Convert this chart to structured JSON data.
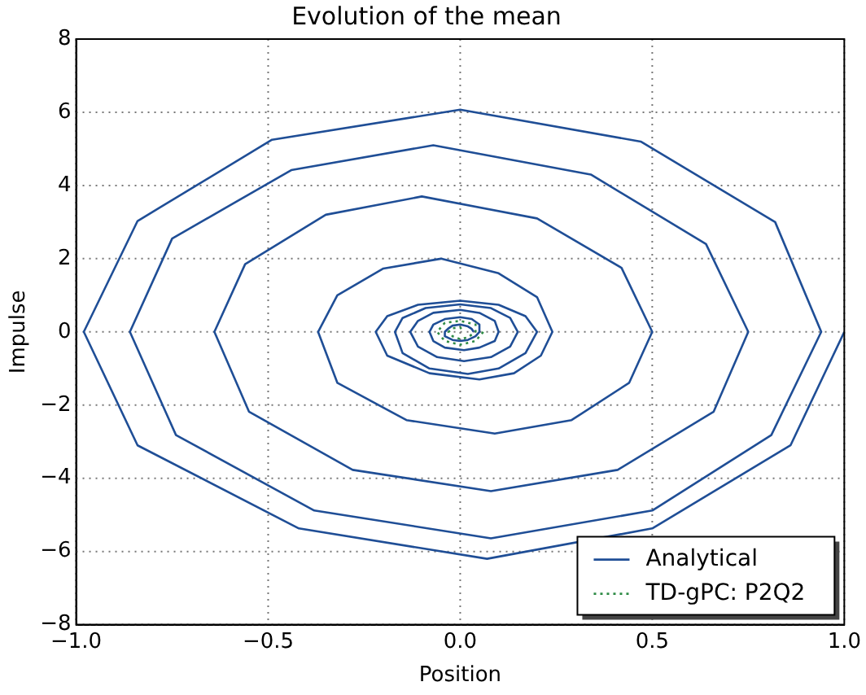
{
  "chart_data": {
    "type": "line",
    "title": "Evolution of the mean",
    "xlabel": "Position",
    "ylabel": "Impulse",
    "xlim": [
      -1,
      1
    ],
    "ylim": [
      -8,
      8
    ],
    "xticks": [
      {
        "value": -1,
        "label": "−1.0"
      },
      {
        "value": -0.5,
        "label": "−0.5"
      },
      {
        "value": 0,
        "label": "0.0"
      },
      {
        "value": 0.5,
        "label": "0.5"
      },
      {
        "value": 1,
        "label": "1.0"
      }
    ],
    "yticks": [
      {
        "value": -8,
        "label": "−8"
      },
      {
        "value": -6,
        "label": "−6"
      },
      {
        "value": -4,
        "label": "−4"
      },
      {
        "value": -2,
        "label": "−2"
      },
      0,
      2,
      4,
      6,
      8
    ],
    "grid": true,
    "legend": "bottom right",
    "marker": "none",
    "series": [
      {
        "name": "Analytical",
        "color": "#1f4e96",
        "line_style": "solid",
        "x": [
          1.0,
          0.86,
          0.5,
          0.07,
          -0.42,
          -0.84,
          -0.98,
          -0.84,
          -0.49,
          0,
          0.47,
          0.82,
          0.94,
          0.81,
          0.5,
          0.08,
          -0.38,
          -0.74,
          -0.86,
          -0.75,
          -0.44,
          -0.07,
          0.34,
          0.64,
          0.75,
          0.66,
          0.41,
          0.08,
          -0.28,
          -0.55,
          -0.64,
          -0.56,
          -0.35,
          -0.1,
          0.2,
          0.42,
          0.5,
          0.44,
          0.29,
          0.09,
          -0.14,
          -0.32,
          -0.37,
          -0.32,
          -0.2,
          -0.05,
          0.1,
          0.2,
          0.24,
          0.21,
          0.14,
          0.05,
          -0.08,
          -0.19,
          -0.22,
          -0.19,
          -0.11,
          0,
          0.1,
          0.17,
          0.2,
          0.17,
          0.1,
          0.02,
          -0.08,
          -0.15,
          -0.17,
          -0.15,
          -0.09,
          0,
          0.08,
          0.13,
          0.15,
          0.13,
          0.08,
          0.01,
          -0.06,
          -0.11,
          -0.13,
          -0.11,
          -0.07,
          0,
          0.05,
          0.09,
          0.1,
          0.09,
          0.05,
          0.01,
          -0.04,
          -0.07,
          -0.08,
          -0.07,
          -0.04,
          0,
          0.03,
          0.05,
          0.05,
          0.04,
          0.02,
          0,
          -0.02,
          -0.04,
          -0.04,
          -0.03,
          -0.02,
          0,
          0.02,
          0.03,
          0.035
        ],
        "values": [
          0,
          -3.1,
          -5.37,
          -6.2,
          -5.37,
          -3.1,
          0,
          3.03,
          5.25,
          6.07,
          5.2,
          3.0,
          0,
          -2.82,
          -4.88,
          -5.64,
          -4.88,
          -2.82,
          0,
          2.55,
          4.42,
          5.1,
          4.3,
          2.4,
          0,
          -2.18,
          -3.77,
          -4.35,
          -3.77,
          -2.18,
          0,
          1.85,
          3.2,
          3.7,
          3.1,
          1.75,
          0,
          -1.39,
          -2.41,
          -2.78,
          -2.41,
          -1.39,
          0,
          1.0,
          1.73,
          2.0,
          1.6,
          0.95,
          0,
          -0.65,
          -1.13,
          -1.3,
          -1.13,
          -0.65,
          0,
          0.43,
          0.74,
          0.85,
          0.74,
          0.43,
          0,
          -0.58,
          -1.0,
          -1.15,
          -1.0,
          -0.58,
          0,
          0.38,
          0.65,
          0.75,
          0.65,
          0.38,
          0,
          -0.4,
          -0.69,
          -0.8,
          -0.69,
          -0.4,
          0,
          0.3,
          0.52,
          0.6,
          0.52,
          0.3,
          0,
          -0.25,
          -0.43,
          -0.5,
          -0.43,
          -0.25,
          0,
          0.2,
          0.35,
          0.4,
          0.35,
          0.2,
          0,
          -0.12,
          -0.22,
          -0.25,
          -0.22,
          -0.12,
          0,
          0.1,
          0.17,
          0.2,
          0.15,
          0.08,
          0
        ]
      },
      {
        "name": "TD-gPC: P2Q2",
        "color": "#2e8b45",
        "line_style": "dotted",
        "x": [
          0.06,
          0.04,
          0,
          -0.04,
          -0.06,
          -0.04,
          0,
          0.04,
          0.04,
          0.02,
          0,
          -0.02,
          -0.03,
          -0.02,
          0,
          0.01
        ],
        "values": [
          0,
          -0.25,
          -0.35,
          -0.25,
          0,
          0.25,
          0.3,
          0.2,
          0,
          -0.15,
          -0.2,
          -0.12,
          0,
          0.1,
          0.12,
          0
        ]
      }
    ]
  }
}
